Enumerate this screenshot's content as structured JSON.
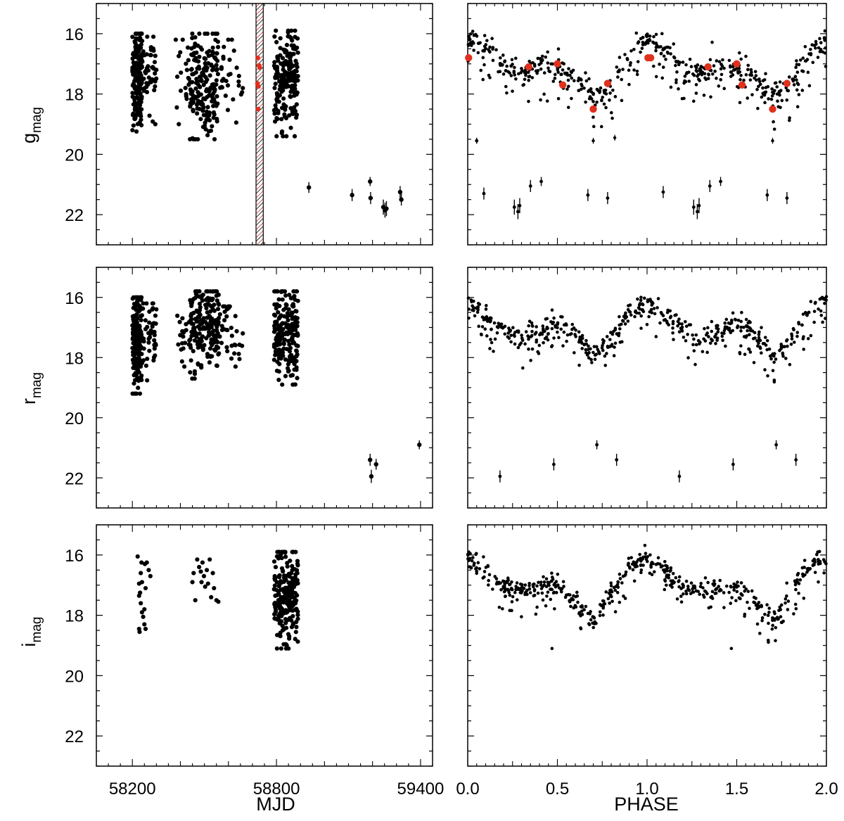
{
  "chart_data": [
    {
      "type": "scatter",
      "panel": "g-MJD",
      "xlabel": "",
      "ylabel_main": "g",
      "ylabel_sub": "mag",
      "xlim": [
        58050,
        59450
      ],
      "ylim": [
        23,
        15
      ],
      "x_ticks": [
        58200,
        58800,
        59400
      ],
      "y_ticks": [
        16,
        18,
        20,
        22
      ],
      "y_tick_labels": [
        "16",
        "18",
        "20",
        "22"
      ],
      "shaded_band": {
        "x_start": 58715,
        "x_end": 58745,
        "pattern": "red-black diagonal hatch"
      },
      "season_clusters": [
        {
          "x_range": [
            58200,
            58240
          ],
          "y_range": [
            16.0,
            19.3
          ],
          "count": 170
        },
        {
          "x_range": [
            58240,
            58300
          ],
          "y_range": [
            16.1,
            19.0
          ],
          "count": 45
        },
        {
          "x_range": [
            58380,
            58440
          ],
          "y_range": [
            16.2,
            19.0
          ],
          "count": 20
        },
        {
          "x_range": [
            58440,
            58560
          ],
          "y_range": [
            16.0,
            19.5
          ],
          "count": 190
        },
        {
          "x_range": [
            58560,
            58660
          ],
          "y_range": [
            16.2,
            19.0
          ],
          "count": 30
        },
        {
          "x_range": [
            58790,
            58890
          ],
          "y_range": [
            15.9,
            19.4
          ],
          "count": 190
        }
      ],
      "red_points": [
        {
          "x": 58722,
          "y": 16.8
        },
        {
          "x": 58727,
          "y": 17.05
        },
        {
          "x": 58730,
          "y": 17.12
        },
        {
          "x": 58721,
          "y": 17.65
        },
        {
          "x": 58725,
          "y": 17.75
        },
        {
          "x": 58724,
          "y": 18.5
        }
      ],
      "faint_points": [
        {
          "x": 58935,
          "y": 21.1,
          "err": 0.18
        },
        {
          "x": 59115,
          "y": 21.35,
          "err": 0.2
        },
        {
          "x": 59190,
          "y": 20.9,
          "err": 0.15
        },
        {
          "x": 59192,
          "y": 21.45,
          "err": 0.2
        },
        {
          "x": 59245,
          "y": 21.75,
          "err": 0.25
        },
        {
          "x": 59252,
          "y": 21.85,
          "err": 0.25
        },
        {
          "x": 59258,
          "y": 21.8,
          "err": 0.25
        },
        {
          "x": 59315,
          "y": 21.25,
          "err": 0.2
        },
        {
          "x": 59320,
          "y": 21.5,
          "err": 0.2
        }
      ]
    },
    {
      "type": "scatter",
      "panel": "g-PHASE",
      "xlim": [
        0,
        2
      ],
      "ylim": [
        23,
        15
      ],
      "x_ticks": [
        0,
        0.5,
        1,
        1.5,
        2
      ],
      "y_ticks": [
        16,
        18,
        20,
        22
      ],
      "light_curve": {
        "phase": [
          0.0,
          0.1,
          0.2,
          0.3,
          0.4,
          0.5,
          0.6,
          0.7,
          0.75,
          0.8,
          0.9,
          1.0
        ],
        "mag": [
          16.15,
          16.5,
          17.0,
          17.35,
          17.0,
          17.1,
          17.4,
          18.05,
          17.95,
          17.7,
          16.6,
          16.1
        ],
        "scatter": 0.35,
        "faint_tail_depth": 1.2
      },
      "red_points": [
        {
          "phase": 0.005,
          "y": 16.8
        },
        {
          "phase": 0.34,
          "y": 17.1
        },
        {
          "phase": 0.5,
          "y": 17.0
        },
        {
          "phase": 0.53,
          "y": 17.7
        },
        {
          "phase": 0.7,
          "y": 18.5
        },
        {
          "phase": 0.78,
          "y": 17.65
        },
        {
          "phase": 1.02,
          "y": 16.8
        }
      ],
      "faint_points": [
        {
          "phase": 0.05,
          "y": 19.55,
          "err": 0.1
        },
        {
          "phase": 0.09,
          "y": 21.3,
          "err": 0.2
        },
        {
          "phase": 0.26,
          "y": 21.75,
          "err": 0.25
        },
        {
          "phase": 0.28,
          "y": 21.9,
          "err": 0.25
        },
        {
          "phase": 0.29,
          "y": 21.7,
          "err": 0.25
        },
        {
          "phase": 0.35,
          "y": 21.05,
          "err": 0.2
        },
        {
          "phase": 0.41,
          "y": 20.9,
          "err": 0.15
        },
        {
          "phase": 0.67,
          "y": 21.35,
          "err": 0.2
        },
        {
          "phase": 0.78,
          "y": 21.45,
          "err": 0.2
        },
        {
          "phase": 1.09,
          "y": 21.25,
          "err": 0.2
        },
        {
          "phase": 1.26,
          "y": 21.75,
          "err": 0.25
        },
        {
          "phase": 1.28,
          "y": 21.9,
          "err": 0.25
        },
        {
          "phase": 1.29,
          "y": 21.7,
          "err": 0.25
        },
        {
          "phase": 1.35,
          "y": 21.05,
          "err": 0.2
        },
        {
          "phase": 1.41,
          "y": 20.9,
          "err": 0.15
        },
        {
          "phase": 1.67,
          "y": 21.35,
          "err": 0.2
        },
        {
          "phase": 1.78,
          "y": 21.45,
          "err": 0.2
        }
      ],
      "extra_faint_single": [
        {
          "phase": 0.7,
          "y": 19.55,
          "err": 0.1
        },
        {
          "phase": 0.82,
          "y": 19.45,
          "err": 0.1
        },
        {
          "phase": 1.7,
          "y": 19.55,
          "err": 0.1
        }
      ]
    },
    {
      "type": "scatter",
      "panel": "r-MJD",
      "ylabel_main": "r",
      "ylabel_sub": "mag",
      "xlim": [
        58050,
        59450
      ],
      "ylim": [
        23,
        15
      ],
      "x_ticks": [
        58200,
        58800,
        59400
      ],
      "y_ticks": [
        16,
        18,
        20,
        22
      ],
      "y_tick_labels": [
        "16",
        "18",
        "20",
        "22"
      ],
      "season_clusters": [
        {
          "x_range": [
            58200,
            58240
          ],
          "y_range": [
            16.0,
            19.2
          ],
          "count": 180
        },
        {
          "x_range": [
            58240,
            58300
          ],
          "y_range": [
            16.2,
            18.8
          ],
          "count": 45
        },
        {
          "x_range": [
            58380,
            58440
          ],
          "y_range": [
            16.6,
            18.3
          ],
          "count": 20
        },
        {
          "x_range": [
            58440,
            58560
          ],
          "y_range": [
            15.8,
            18.7
          ],
          "count": 200
        },
        {
          "x_range": [
            58560,
            58660
          ],
          "y_range": [
            16.3,
            18.3
          ],
          "count": 35
        },
        {
          "x_range": [
            58790,
            58890
          ],
          "y_range": [
            15.8,
            18.9
          ],
          "count": 210
        }
      ],
      "faint_points": [
        {
          "x": 59190,
          "y": 21.4,
          "err": 0.2
        },
        {
          "x": 59195,
          "y": 21.95,
          "err": 0.22
        },
        {
          "x": 59215,
          "y": 21.55,
          "err": 0.18
        },
        {
          "x": 59395,
          "y": 20.9,
          "err": 0.15
        }
      ]
    },
    {
      "type": "scatter",
      "panel": "r-PHASE",
      "xlim": [
        0,
        2
      ],
      "ylim": [
        23,
        15
      ],
      "x_ticks": [
        0,
        0.5,
        1,
        1.5,
        2
      ],
      "y_ticks": [
        16,
        18,
        20,
        22
      ],
      "light_curve": {
        "phase": [
          0.0,
          0.1,
          0.2,
          0.3,
          0.4,
          0.5,
          0.6,
          0.7,
          0.75,
          0.8,
          0.9,
          1.0
        ],
        "mag": [
          16.15,
          16.6,
          17.1,
          17.4,
          17.1,
          16.85,
          17.2,
          17.9,
          17.75,
          17.5,
          16.5,
          16.05
        ],
        "scatter": 0.3,
        "faint_tail_depth": 1.0
      },
      "faint_points": [
        {
          "phase": 0.18,
          "y": 21.95,
          "err": 0.2
        },
        {
          "phase": 0.48,
          "y": 21.55,
          "err": 0.2
        },
        {
          "phase": 0.72,
          "y": 20.9,
          "err": 0.15
        },
        {
          "phase": 0.83,
          "y": 21.4,
          "err": 0.2
        },
        {
          "phase": 1.18,
          "y": 21.95,
          "err": 0.2
        },
        {
          "phase": 1.48,
          "y": 21.55,
          "err": 0.2
        },
        {
          "phase": 1.72,
          "y": 20.9,
          "err": 0.15
        },
        {
          "phase": 1.83,
          "y": 21.4,
          "err": 0.2
        }
      ]
    },
    {
      "type": "scatter",
      "panel": "i-MJD",
      "xlabel": "MJD",
      "ylabel_main": "i",
      "ylabel_sub": "mag",
      "xlim": [
        58050,
        59450
      ],
      "ylim": [
        23,
        15
      ],
      "x_ticks": [
        58200,
        58800,
        59400
      ],
      "x_tick_labels": [
        "58200",
        "58800",
        "59400"
      ],
      "y_ticks": [
        16,
        18,
        20,
        22
      ],
      "y_tick_labels": [
        "16",
        "18",
        "20",
        "22"
      ],
      "points": [
        {
          "x": 58222,
          "y": 16.05
        },
        {
          "x": 58235,
          "y": 16.6
        },
        {
          "x": 58228,
          "y": 16.95
        },
        {
          "x": 58232,
          "y": 17.25
        },
        {
          "x": 58228,
          "y": 17.35
        },
        {
          "x": 58235,
          "y": 17.6
        },
        {
          "x": 58240,
          "y": 17.9
        },
        {
          "x": 58245,
          "y": 18.05
        },
        {
          "x": 58250,
          "y": 18.3
        },
        {
          "x": 58255,
          "y": 18.45
        },
        {
          "x": 58228,
          "y": 18.45
        },
        {
          "x": 58230,
          "y": 18.55
        },
        {
          "x": 58238,
          "y": 16.25
        },
        {
          "x": 58252,
          "y": 16.3
        },
        {
          "x": 58240,
          "y": 16.9
        },
        {
          "x": 58260,
          "y": 16.25
        },
        {
          "x": 58268,
          "y": 16.5
        },
        {
          "x": 58275,
          "y": 16.7
        },
        {
          "x": 58250,
          "y": 17.8
        },
        {
          "x": 58255,
          "y": 17.1
        },
        {
          "x": 58450,
          "y": 16.9
        },
        {
          "x": 58455,
          "y": 16.6
        },
        {
          "x": 58462,
          "y": 17.5
        },
        {
          "x": 58470,
          "y": 16.15
        },
        {
          "x": 58478,
          "y": 16.4
        },
        {
          "x": 58485,
          "y": 16.55
        },
        {
          "x": 58488,
          "y": 16.9
        },
        {
          "x": 58492,
          "y": 16.25
        },
        {
          "x": 58498,
          "y": 16.7
        },
        {
          "x": 58503,
          "y": 17.05
        },
        {
          "x": 58510,
          "y": 16.5
        },
        {
          "x": 58515,
          "y": 16.95
        },
        {
          "x": 58522,
          "y": 16.15
        },
        {
          "x": 58528,
          "y": 17.4
        },
        {
          "x": 58535,
          "y": 16.6
        },
        {
          "x": 58540,
          "y": 17.1
        },
        {
          "x": 58550,
          "y": 17.5
        },
        {
          "x": 58558,
          "y": 17.55
        }
      ],
      "season_clusters": [
        {
          "x_range": [
            58790,
            58890
          ],
          "y_range": [
            15.9,
            19.1
          ],
          "count": 220
        }
      ]
    },
    {
      "type": "scatter",
      "panel": "i-PHASE",
      "xlabel": "PHASE",
      "xlim": [
        0,
        2
      ],
      "ylim": [
        23,
        15
      ],
      "x_ticks": [
        0,
        0.5,
        1,
        1.5,
        2
      ],
      "x_tick_labels": [
        "0.0",
        "0.5",
        "1.0",
        "1.5",
        "2.0"
      ],
      "y_ticks": [
        16,
        18,
        20,
        22
      ],
      "light_curve": {
        "phase": [
          0.0,
          0.1,
          0.2,
          0.3,
          0.4,
          0.5,
          0.6,
          0.7,
          0.75,
          0.8,
          0.9,
          1.0
        ],
        "mag": [
          16.1,
          16.55,
          17.0,
          17.2,
          17.05,
          16.95,
          17.5,
          18.2,
          17.8,
          17.2,
          16.4,
          16.0
        ],
        "scatter": 0.28,
        "faint_tail_depth": 0.9
      },
      "outliers": [
        {
          "phase": 0.47,
          "y": 19.1
        },
        {
          "phase": 1.47,
          "y": 19.1
        }
      ]
    }
  ]
}
